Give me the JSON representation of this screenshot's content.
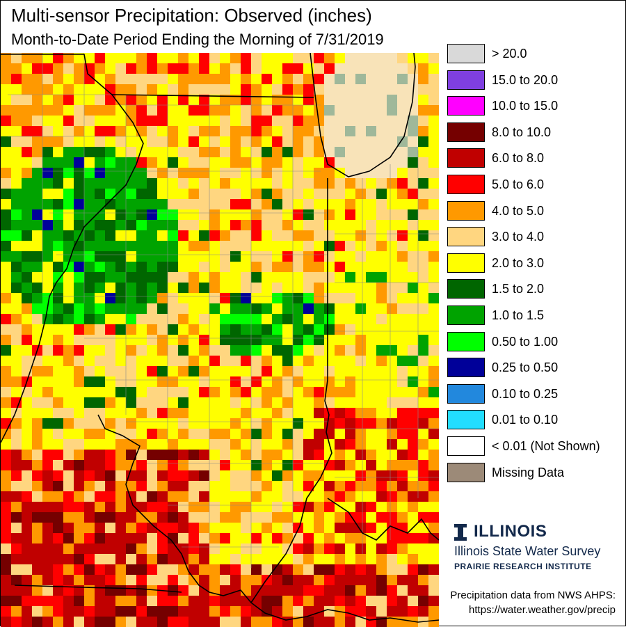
{
  "header": {
    "title": "Multi-sensor Precipitation: Observed (inches)",
    "subtitle": "Month-to-Date Period Ending the Morning of 7/31/2019"
  },
  "legend": [
    {
      "label": "> 20.0",
      "color": "#d9d9d9"
    },
    {
      "label": "15.0 to 20.0",
      "color": "#7f3fe0"
    },
    {
      "label": "10.0 to 15.0",
      "color": "#ff00ff"
    },
    {
      "label": "8.0 to 10.0",
      "color": "#750000"
    },
    {
      "label": "6.0 to 8.0",
      "color": "#c00000"
    },
    {
      "label": "5.0 to 6.0",
      "color": "#ff0000"
    },
    {
      "label": "4.0 to 5.0",
      "color": "#ff9900"
    },
    {
      "label": "3.0 to 4.0",
      "color": "#ffd680"
    },
    {
      "label": "2.0 to 3.0",
      "color": "#ffff00"
    },
    {
      "label": "1.5 to 2.0",
      "color": "#006600"
    },
    {
      "label": "1.0 to 1.5",
      "color": "#00a300"
    },
    {
      "label": "0.50 to 1.00",
      "color": "#00ff00"
    },
    {
      "label": "0.25 to 0.50",
      "color": "#000099"
    },
    {
      "label": "0.10 to 0.25",
      "color": "#2288dd"
    },
    {
      "label": "0.01 to 0.10",
      "color": "#22ddff"
    },
    {
      "label": "< 0.01 (Not Shown)",
      "color": "#ffffff"
    },
    {
      "label": "Missing Data",
      "color": "#9c8a78"
    }
  ],
  "logo": {
    "name": "ILLINOIS",
    "line1": "Illinois State Water Survey",
    "line2": "PRAIRIE RESEARCH INSTITUTE"
  },
  "credit": {
    "line1": "Precipitation data from NWS AHPS:",
    "line2": "https://water.weather.gov/precip"
  }
}
